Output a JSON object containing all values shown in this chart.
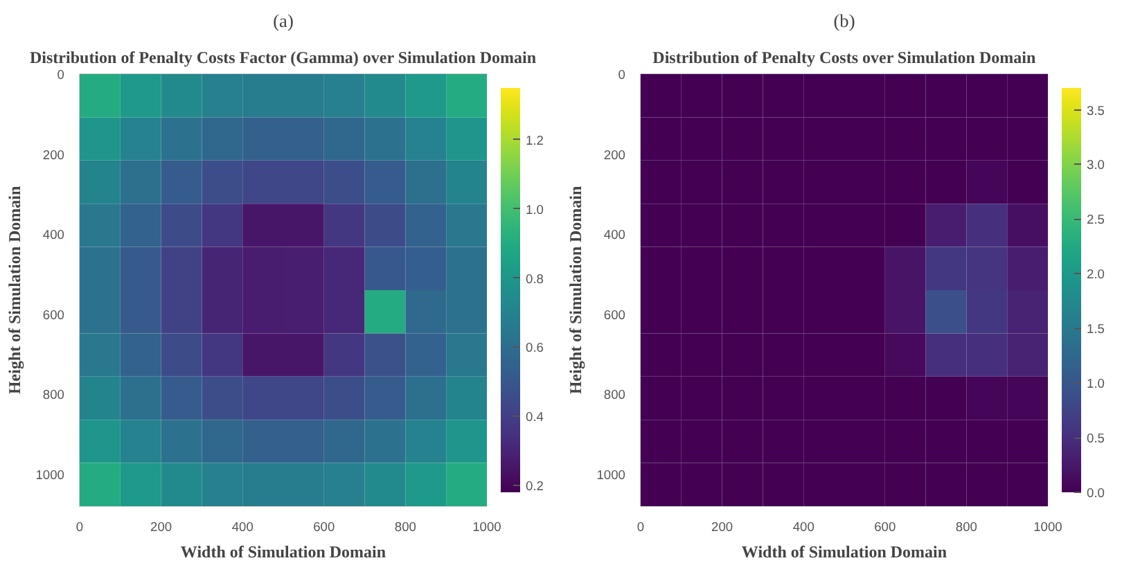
{
  "chart_data": [
    {
      "type": "heatmap",
      "title": "Distribution of Penalty Costs Factor (Gamma) over Simulation Domain",
      "annotations": [
        "(a)"
      ],
      "xlabel": "Width of Simulation Domain",
      "ylabel": "Height of Simulation Domain",
      "x": [
        50,
        150,
        250,
        350,
        450,
        550,
        650,
        750,
        850,
        950
      ],
      "y": [
        54,
        162,
        270,
        378,
        486,
        594,
        702,
        810,
        918,
        1026
      ],
      "cells": [
        [
          0.9,
          0.81,
          0.74,
          0.69,
          0.67,
          0.67,
          0.69,
          0.74,
          0.81,
          0.9
        ],
        [
          0.79,
          0.7,
          0.62,
          0.57,
          0.54,
          0.54,
          0.57,
          0.62,
          0.7,
          0.79
        ],
        [
          0.71,
          0.61,
          0.52,
          0.46,
          0.43,
          0.43,
          0.46,
          0.52,
          0.61,
          0.71
        ],
        [
          0.65,
          0.55,
          0.45,
          0.37,
          0.25,
          0.25,
          0.37,
          0.45,
          0.55,
          0.65
        ],
        [
          0.62,
          0.51,
          0.41,
          0.3,
          0.27,
          0.28,
          0.31,
          0.5,
          0.53,
          0.62
        ],
        [
          0.62,
          0.51,
          0.41,
          0.3,
          0.27,
          0.28,
          0.31,
          0.9,
          0.58,
          0.62
        ],
        [
          0.65,
          0.55,
          0.45,
          0.37,
          0.25,
          0.25,
          0.37,
          0.47,
          0.55,
          0.65
        ],
        [
          0.71,
          0.61,
          0.52,
          0.46,
          0.43,
          0.43,
          0.46,
          0.52,
          0.61,
          0.71
        ],
        [
          0.79,
          0.7,
          0.62,
          0.57,
          0.54,
          0.54,
          0.57,
          0.62,
          0.7,
          0.79
        ],
        [
          0.9,
          0.81,
          0.74,
          0.69,
          0.67,
          0.67,
          0.69,
          0.74,
          0.81,
          0.9
        ]
      ],
      "xlim": [
        0,
        1000
      ],
      "ylim": [
        1080,
        0
      ],
      "xticks": [
        0,
        200,
        400,
        600,
        800,
        1000
      ],
      "yticks": [
        0,
        200,
        400,
        600,
        800,
        1000
      ],
      "clim": [
        0.18,
        1.35
      ],
      "cticks": [
        0.2,
        0.4,
        0.6,
        0.8,
        {
          "value": 1,
          "label": "1.0"
        },
        1.2
      ]
    },
    {
      "type": "heatmap",
      "title": "Distribution of Penalty Costs over Simulation Domain",
      "annotations": [
        "(b)"
      ],
      "xlabel": "Width of Simulation Domain",
      "ylabel": "Height of Simulation Domain",
      "x": [
        50,
        150,
        250,
        350,
        450,
        550,
        650,
        750,
        850,
        950
      ],
      "y": [
        54,
        162,
        270,
        378,
        486,
        594,
        702,
        810,
        918,
        1026
      ],
      "cells": [
        [
          0,
          0,
          0,
          0,
          0,
          0,
          0,
          0,
          0,
          0
        ],
        [
          0,
          0,
          0,
          0,
          0,
          0,
          0,
          0,
          0,
          0
        ],
        [
          0,
          0,
          0,
          0,
          0,
          0,
          0,
          0,
          0.05,
          0
        ],
        [
          0,
          0,
          0,
          0,
          0,
          0,
          0,
          0.3,
          0.5,
          0.15
        ],
        [
          0,
          0,
          0,
          0,
          0,
          0,
          0.2,
          0.6,
          0.55,
          0.3
        ],
        [
          0,
          0,
          0,
          0,
          0,
          0,
          0.2,
          0.9,
          0.6,
          0.35
        ],
        [
          0,
          0,
          0,
          0,
          0,
          0,
          0.1,
          0.5,
          0.5,
          0.35
        ],
        [
          0,
          0,
          0,
          0,
          0,
          0,
          0,
          0,
          0.05,
          0.05
        ],
        [
          0,
          0,
          0,
          0,
          0,
          0,
          0,
          0,
          0,
          0
        ],
        [
          0,
          0,
          0,
          0,
          0,
          0,
          0,
          0,
          0,
          0
        ]
      ],
      "xlim": [
        0,
        1000
      ],
      "ylim": [
        1080,
        0
      ],
      "xticks": [
        0,
        200,
        400,
        600,
        800,
        1000
      ],
      "yticks": [
        0,
        200,
        400,
        600,
        800,
        1000
      ],
      "clim": [
        0,
        3.7
      ],
      "cticks": [
        {
          "value": 0,
          "label": "0.0"
        },
        0.5,
        {
          "value": 1,
          "label": "1.0"
        },
        1.5,
        {
          "value": 2,
          "label": "2.0"
        },
        2.5,
        {
          "value": 3,
          "label": "3.0"
        },
        3.5
      ]
    }
  ]
}
